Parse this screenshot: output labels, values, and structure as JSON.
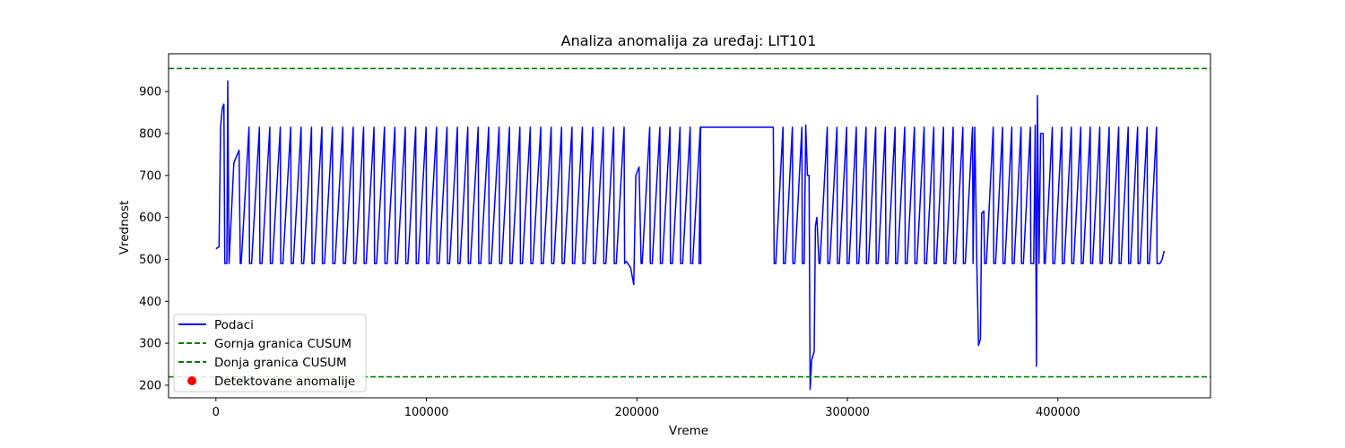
{
  "chart_data": {
    "type": "line",
    "title": "Analiza anomalija za uređaj: LIT101",
    "xlabel": "Vreme",
    "ylabel": "Vrednost",
    "xlim": [
      -22500,
      472500
    ],
    "ylim": [
      170,
      990
    ],
    "xticks": [
      0,
      100000,
      200000,
      300000,
      400000
    ],
    "xtick_labels": [
      "0",
      "100000",
      "200000",
      "300000",
      "400000"
    ],
    "yticks": [
      200,
      300,
      400,
      500,
      600,
      700,
      800,
      900
    ],
    "ytick_labels": [
      "200",
      "300",
      "400",
      "500",
      "600",
      "700",
      "800",
      "900"
    ],
    "grid": false,
    "legend_position": "lower-left",
    "series": [
      {
        "name": "Podaci",
        "color": "#0000ff",
        "pattern": "fill-drain cycles between ~490 and ~815",
        "points": [
          [
            0,
            525
          ],
          [
            2000,
            530
          ],
          [
            2500,
            815
          ],
          [
            4000,
            870
          ],
          [
            5000,
            490
          ],
          [
            5500,
            925
          ],
          [
            6500,
            490
          ],
          [
            9000,
            740
          ],
          [
            11500,
            760
          ],
          [
            12000,
            490
          ],
          [
            14000,
            815
          ],
          [
            15000,
            490
          ],
          [
            19000,
            815
          ],
          [
            20000,
            490
          ],
          [
            230000,
            490
          ],
          [
            230500,
            815
          ],
          [
            265000,
            815
          ],
          [
            265500,
            490
          ],
          [
            197000,
            490
          ],
          [
            199000,
            440
          ],
          [
            200000,
            700
          ],
          [
            202000,
            720
          ],
          [
            280000,
            820
          ],
          [
            281000,
            700
          ],
          [
            282000,
            190
          ],
          [
            283000,
            260
          ],
          [
            285000,
            580
          ],
          [
            290000,
            815
          ],
          [
            361000,
            815
          ],
          [
            362000,
            295
          ],
          [
            363000,
            310
          ],
          [
            364000,
            610
          ],
          [
            365000,
            815
          ],
          [
            389000,
            820
          ],
          [
            390000,
            245
          ],
          [
            390500,
            890
          ],
          [
            392000,
            800
          ],
          [
            449000,
            495
          ],
          [
            451000,
            520
          ]
        ]
      }
    ],
    "thresholds": [
      {
        "name": "Gornja granica CUSUM",
        "value": 955,
        "color": "#008000",
        "style": "dashed"
      },
      {
        "name": "Donja granica CUSUM",
        "value": 220,
        "color": "#008000",
        "style": "dashed"
      }
    ],
    "anomalies": {
      "name": "Detektovane anomalije",
      "color": "#ff0000",
      "points": []
    }
  }
}
